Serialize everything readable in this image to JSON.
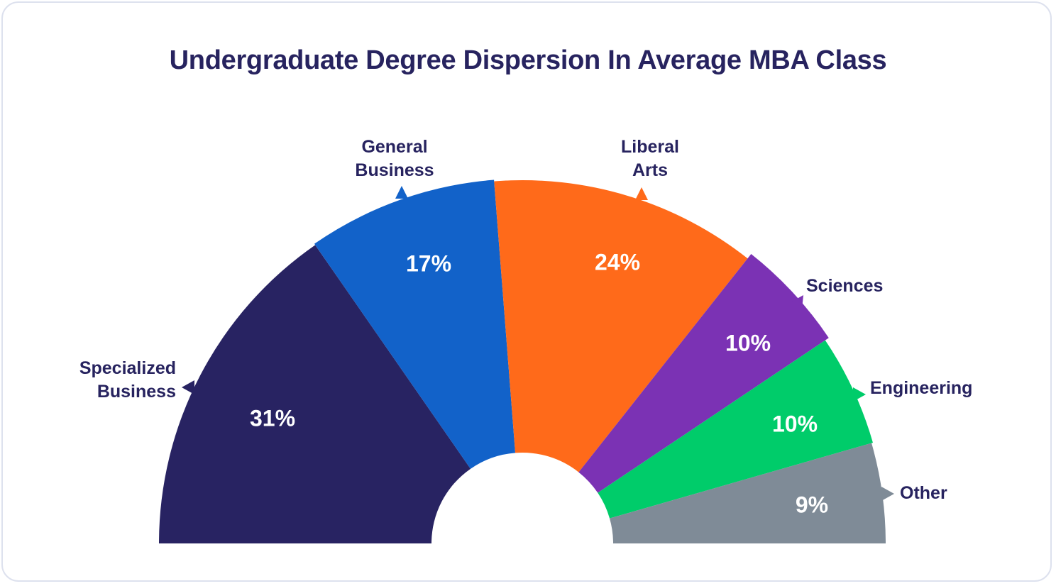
{
  "chart_data": {
    "type": "pie",
    "title": "Undergraduate Degree Dispersion In Average MBA Class",
    "legend": "none",
    "slices": [
      {
        "label_lines": [
          "Specialized",
          "Business"
        ],
        "value": 31,
        "value_label": "31%",
        "color": "#282362"
      },
      {
        "label_lines": [
          "General",
          "Business"
        ],
        "value": 17,
        "value_label": "17%",
        "color": "#1262c9"
      },
      {
        "label_lines": [
          "Liberal",
          "Arts"
        ],
        "value": 24,
        "value_label": "24%",
        "color": "#ff6a1a"
      },
      {
        "label_lines": [
          "Sciences"
        ],
        "value": 10,
        "value_label": "10%",
        "color": "#7b32b4"
      },
      {
        "label_lines": [
          "Engineering"
        ],
        "value": 10,
        "value_label": "10%",
        "color": "#00cc6a"
      },
      {
        "label_lines": [
          "Other"
        ],
        "value": 9,
        "value_label": "9%",
        "color": "#7f8b97"
      }
    ]
  }
}
